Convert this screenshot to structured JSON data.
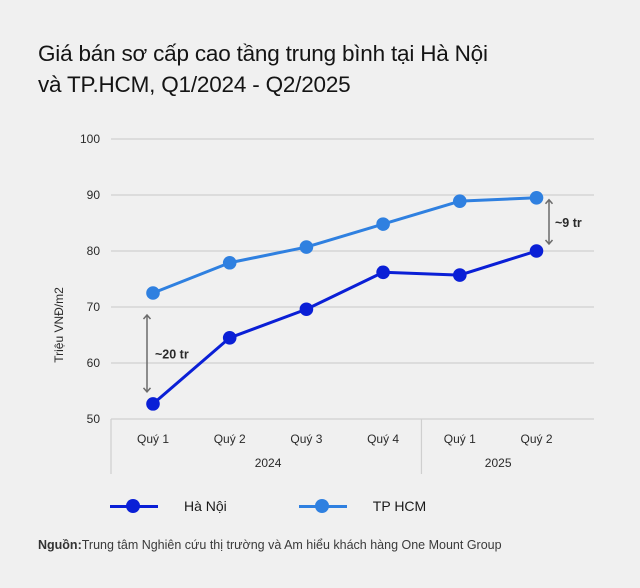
{
  "title": {
    "line1": "Giá bán sơ cấp cao tầng trung bình tại Hà Nội",
    "line2": "và TP.HCM, Q1/2024 - Q2/2025"
  },
  "colors": {
    "background": "#f0f0f0",
    "ha_noi": "#0a1fd6",
    "tp_hcm": "#2f80e0",
    "grid": "#cfcfcf",
    "annotation_arrow": "#6b6b6b"
  },
  "legend": [
    {
      "label": "Hà Nội",
      "color": "#0a1fd6"
    },
    {
      "label": "TP HCM",
      "color": "#2f80e0"
    }
  ],
  "annotations": [
    {
      "text": "~20 tr",
      "at": "Quý 1 2024"
    },
    {
      "text": "~9 tr",
      "at": "Quý 2 2025"
    }
  ],
  "source": {
    "label": "Nguồn:",
    "text": "Trung tâm Nghiên cứu thị trường và Am hiểu khách hàng One Mount Group"
  },
  "chart_data": {
    "type": "line",
    "title": "Giá bán sơ cấp cao tầng trung bình tại Hà Nội và TP.HCM, Q1/2024 - Q2/2025",
    "xlabel": "",
    "ylabel": "Triệu VNĐ/m2",
    "categories": [
      "Quý 1",
      "Quý 2",
      "Quý 3",
      "Quý 4",
      "Quý 1",
      "Quý 2"
    ],
    "category_groups": [
      {
        "label": "2024",
        "span": 4
      },
      {
        "label": "2025",
        "span": 2
      }
    ],
    "yticks": [
      50,
      60,
      70,
      80,
      90,
      100
    ],
    "ylim": [
      50,
      100
    ],
    "grid": true,
    "legend_position": "bottom",
    "series": [
      {
        "name": "Hà Nội",
        "color": "#0a1fd6",
        "values": [
          52.7,
          64.5,
          69.6,
          76.2,
          75.7,
          80.0
        ]
      },
      {
        "name": "TP HCM",
        "color": "#2f80e0",
        "values": [
          72.5,
          77.9,
          80.7,
          84.8,
          88.9,
          89.5
        ]
      }
    ],
    "annotations": [
      {
        "text": "~20 tr",
        "category_index": 0,
        "between": [
          "Hà Nội",
          "TP HCM"
        ]
      },
      {
        "text": "~9 tr",
        "category_index": 5,
        "between": [
          "Hà Nội",
          "TP HCM"
        ]
      }
    ]
  }
}
